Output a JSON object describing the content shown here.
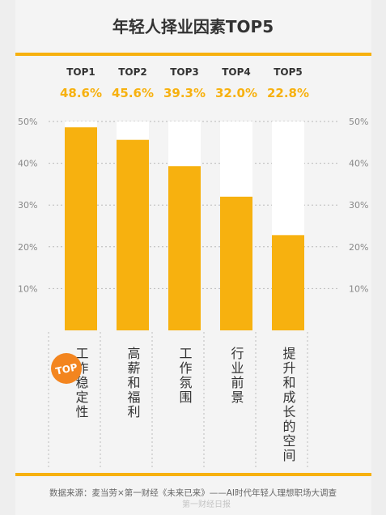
{
  "colors": {
    "accent": "#f7b10f",
    "bar_bg": "#ffffff",
    "text": "#333333",
    "muted": "#888888",
    "page_bg": "#eeeeee",
    "badge": "#f3851f"
  },
  "badge_text": "TOP",
  "footer": {
    "source": "数据来源：麦当劳×第一财经《未来已来》——AI时代年轻人理想职场大调查",
    "watermark": "第一财经日报"
  },
  "chart_data": {
    "type": "bar",
    "title": "年轻人择业因素TOP5",
    "ranks": [
      "TOP1",
      "TOP2",
      "TOP3",
      "TOP4",
      "TOP5"
    ],
    "value_labels": [
      "48.6%",
      "45.6%",
      "39.3%",
      "32.0%",
      "22.8%"
    ],
    "categories": [
      "工作稳定性",
      "高薪和福利",
      "工作氛围",
      "行业前景",
      "提升和成长的空间"
    ],
    "values": [
      48.6,
      45.6,
      39.3,
      32.0,
      22.8
    ],
    "ylim": [
      0,
      50
    ],
    "yticks": [
      10,
      20,
      30,
      40,
      50
    ],
    "ytick_labels": [
      "10%",
      "20%",
      "30%",
      "40%",
      "50%"
    ],
    "grid": true,
    "xlabel": "",
    "ylabel": ""
  }
}
